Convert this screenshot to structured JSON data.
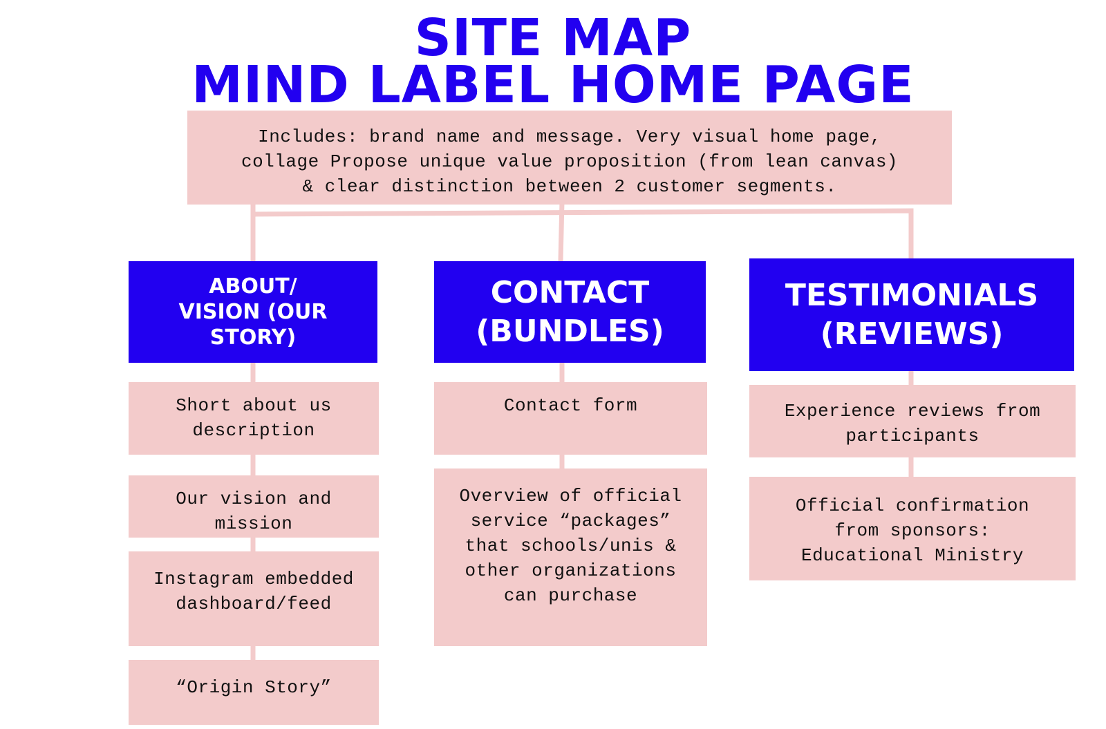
{
  "title": {
    "line1": "SITE MAP",
    "line2": "MIND LABEL HOME PAGE"
  },
  "home": {
    "text": "Includes: brand name and message. Very visual home page,\ncollage Propose unique value proposition (from lean canvas)\n& clear distinction between 2 customer segments."
  },
  "columns": [
    {
      "heading": "ABOUT/\nVISION (OUR\nSTORY)",
      "items": [
        "Short about us\ndescription",
        "Our vision and\nmission",
        "Instagram embedded\ndashboard/feed",
        "“Origin Story”"
      ]
    },
    {
      "heading": "CONTACT\n(BUNDLES)",
      "items": [
        "Contact form",
        "Overview of official\nservice “packages”\nthat schools/unis &\nother organizations\ncan purchase"
      ]
    },
    {
      "heading": "TESTIMONIALS\n(REVIEWS)",
      "items": [
        "Experience reviews from\nparticipants",
        "Official confirmation\nfrom sponsors:\nEducational Ministry"
      ]
    }
  ],
  "colors": {
    "accent_blue": "#2200f0",
    "box_pink": "#f3cbcb",
    "connector_pink": "#f3cbcb"
  }
}
